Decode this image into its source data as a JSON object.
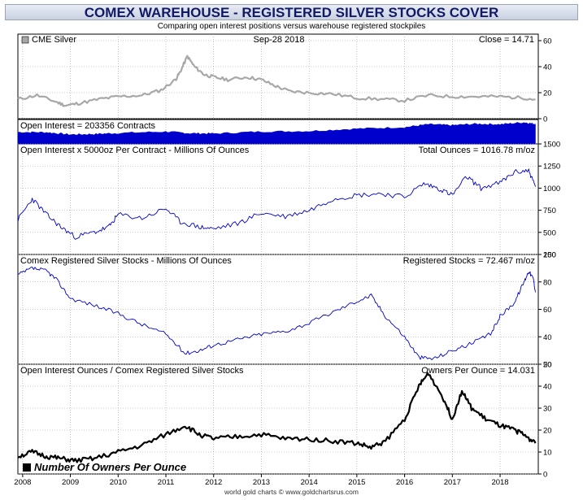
{
  "title": "COMEX WAREHOUSE - REGISTERED SILVER STOCKS COVER",
  "subtitle": "Comparing open interest positions versus warehouse registered stockpiles",
  "footer": "world gold charts © www.goldchartsrus.com",
  "colors": {
    "silver": "#a8a8a8",
    "open_interest": "#0000cc",
    "black": "#000000"
  },
  "chart_data": [
    {
      "type": "line",
      "panel": "price",
      "legend": "CME Silver",
      "date_label": "Sep-28  2018",
      "readout": "Close = 14.71",
      "ylim": [
        0,
        65
      ],
      "yticks": [
        0,
        20,
        40,
        60
      ],
      "x": [
        2007.9,
        2008.3,
        2008.7,
        2008.9,
        2009.2,
        2009.6,
        2010.0,
        2010.5,
        2010.9,
        2011.2,
        2011.3,
        2011.45,
        2011.6,
        2011.8,
        2012.0,
        2012.3,
        2012.7,
        2013.0,
        2013.3,
        2013.6,
        2014.0,
        2014.5,
        2015.0,
        2015.5,
        2016.0,
        2016.5,
        2017.0,
        2017.5,
        2018.0,
        2018.5,
        2018.74
      ],
      "series": [
        {
          "values": [
            15,
            18,
            13,
            10,
            12,
            15,
            17,
            18,
            22,
            30,
            36,
            48,
            40,
            34,
            32,
            30,
            32,
            30,
            25,
            21,
            20,
            19,
            16,
            15,
            14,
            18,
            17,
            17,
            17,
            16,
            14.7
          ]
        }
      ]
    },
    {
      "type": "area",
      "panel": "open_interest_contracts",
      "readout": "Open Interest = 203356 Contracts",
      "ylim": [
        0,
        250000
      ],
      "x": [
        2007.9,
        2008.5,
        2009.0,
        2009.5,
        2010.0,
        2011.0,
        2011.5,
        2012.0,
        2013.0,
        2014.0,
        2015.0,
        2016.0,
        2016.5,
        2017.0,
        2017.5,
        2018.0,
        2018.5,
        2018.74
      ],
      "series": [
        {
          "values": [
            120000,
            118000,
            95000,
            100000,
            110000,
            125000,
            108000,
            105000,
            125000,
            130000,
            155000,
            170000,
            200000,
            190000,
            205000,
            200000,
            220000,
            203356
          ]
        }
      ]
    },
    {
      "type": "line",
      "panel": "open_interest_ounces",
      "title": "Open Interest x 5000oz Per Contract - Millions Of Ounces",
      "readout": "Total Ounces = 1016.78 m/oz",
      "ylim": [
        250,
        1500
      ],
      "yticks": [
        250,
        500,
        750,
        1000,
        1250,
        1500
      ],
      "x": [
        2007.9,
        2008.2,
        2008.5,
        2008.8,
        2009.1,
        2009.5,
        2009.8,
        2010.0,
        2010.5,
        2011.0,
        2011.3,
        2011.7,
        2012.0,
        2012.5,
        2013.0,
        2013.5,
        2014.0,
        2014.5,
        2015.0,
        2015.5,
        2016.0,
        2016.4,
        2016.7,
        2017.0,
        2017.3,
        2017.6,
        2018.0,
        2018.3,
        2018.6,
        2018.74
      ],
      "series": [
        {
          "values": [
            640,
            880,
            700,
            560,
            450,
            500,
            560,
            700,
            660,
            770,
            620,
            560,
            540,
            600,
            720,
            680,
            750,
            880,
            920,
            940,
            900,
            1050,
            1000,
            920,
            1130,
            1000,
            1060,
            1180,
            1200,
            1016.78
          ]
        }
      ]
    },
    {
      "type": "line",
      "panel": "registered_stocks",
      "title": "Comex Registered Silver Stocks - Millions Of Ounces",
      "readout": "Registered Stocks = 72.467 m/oz",
      "ylim": [
        20,
        100
      ],
      "yticks": [
        20,
        40,
        60,
        80,
        100
      ],
      "x": [
        2007.9,
        2008.2,
        2008.5,
        2008.7,
        2009.0,
        2009.5,
        2010.0,
        2010.5,
        2011.0,
        2011.4,
        2011.7,
        2012.0,
        2012.5,
        2013.0,
        2013.5,
        2014.0,
        2014.5,
        2015.0,
        2015.3,
        2015.6,
        2016.0,
        2016.3,
        2016.6,
        2017.0,
        2017.4,
        2017.8,
        2018.0,
        2018.3,
        2018.5,
        2018.6,
        2018.7,
        2018.74
      ],
      "series": [
        {
          "values": [
            85,
            90,
            88,
            82,
            68,
            63,
            57,
            49,
            42,
            28,
            30,
            34,
            38,
            42,
            44,
            50,
            58,
            66,
            70,
            55,
            40,
            25,
            24,
            30,
            35,
            42,
            55,
            65,
            80,
            88,
            82,
            72.467
          ]
        }
      ]
    },
    {
      "type": "line",
      "panel": "owners_per_ounce",
      "title": "Open Interest Ounces / Comex Registered Silver Stocks",
      "readout": "Owners Per Ounce = 14.031",
      "legend": "Number Of Owners Per Ounce",
      "ylim": [
        0,
        50
      ],
      "yticks": [
        0,
        10,
        20,
        30,
        40,
        50
      ],
      "x": [
        2007.9,
        2008.2,
        2008.5,
        2008.8,
        2009.1,
        2009.5,
        2010.0,
        2010.5,
        2011.0,
        2011.4,
        2011.7,
        2012.0,
        2012.5,
        2013.0,
        2013.5,
        2014.0,
        2014.5,
        2015.0,
        2015.3,
        2015.6,
        2016.0,
        2016.3,
        2016.5,
        2016.8,
        2017.0,
        2017.2,
        2017.4,
        2017.7,
        2018.0,
        2018.3,
        2018.5,
        2018.74
      ],
      "series": [
        {
          "values": [
            8,
            10,
            8,
            7,
            6,
            7,
            10,
            13,
            18,
            22,
            18,
            16,
            17,
            18,
            16,
            16,
            15,
            14,
            12,
            15,
            25,
            40,
            46,
            35,
            25,
            38,
            30,
            25,
            22,
            20,
            18,
            14.031
          ]
        }
      ]
    }
  ],
  "x_axis": {
    "ticks": [
      2008,
      2009,
      2010,
      2011,
      2012,
      2013,
      2014,
      2015,
      2016,
      2017,
      2018
    ],
    "range": [
      2007.9,
      2018.8
    ]
  }
}
